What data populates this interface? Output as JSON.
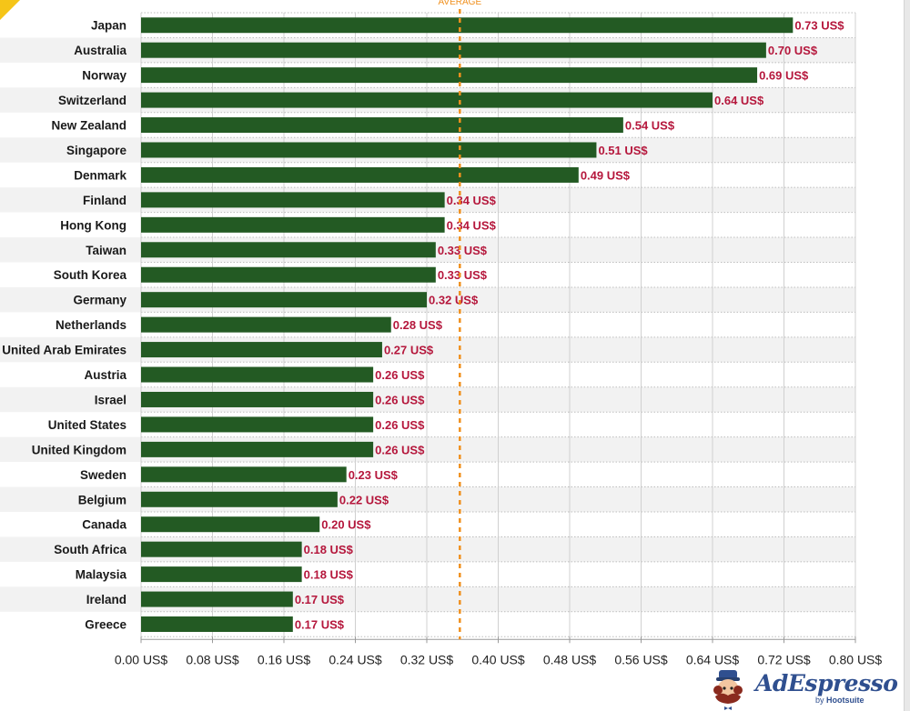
{
  "chart_data": {
    "type": "bar",
    "orientation": "horizontal",
    "title": "",
    "xlabel": "",
    "ylabel": "",
    "categories": [
      "Japan",
      "Australia",
      "Norway",
      "Switzerland",
      "New Zealand",
      "Singapore",
      "Denmark",
      "Finland",
      "Hong Kong",
      "Taiwan",
      "South Korea",
      "Germany",
      "Netherlands",
      "United Arab Emirates",
      "Austria",
      "Israel",
      "United States",
      "United Kingdom",
      "Sweden",
      "Belgium",
      "Canada",
      "South Africa",
      "Malaysia",
      "Ireland",
      "Greece"
    ],
    "values": [
      0.73,
      0.7,
      0.69,
      0.64,
      0.54,
      0.51,
      0.49,
      0.34,
      0.34,
      0.33,
      0.33,
      0.32,
      0.28,
      0.27,
      0.26,
      0.26,
      0.26,
      0.26,
      0.23,
      0.22,
      0.2,
      0.18,
      0.18,
      0.17,
      0.17
    ],
    "value_labels": [
      "0.73 US$",
      "0.70 US$",
      "0.69 US$",
      "0.64 US$",
      "0.54 US$",
      "0.51 US$",
      "0.49 US$",
      "0.34 US$",
      "0.34 US$",
      "0.33 US$",
      "0.33 US$",
      "0.32 US$",
      "0.28 US$",
      "0.27 US$",
      "0.26 US$",
      "0.26 US$",
      "0.26 US$",
      "0.26 US$",
      "0.23 US$",
      "0.22 US$",
      "0.20 US$",
      "0.18 US$",
      "0.18 US$",
      "0.17 US$",
      "0.17 US$"
    ],
    "xlim": [
      0,
      0.8
    ],
    "x_ticks": [
      0,
      0.08,
      0.16,
      0.24,
      0.32,
      0.4,
      0.48,
      0.56,
      0.64,
      0.72,
      0.8
    ],
    "x_tick_labels": [
      "0.00 US$",
      "0.08 US$",
      "0.16 US$",
      "0.24 US$",
      "0.32 US$",
      "0.40 US$",
      "0.48 US$",
      "0.56 US$",
      "0.64 US$",
      "0.72 US$",
      "0.80 US$"
    ],
    "grid": true,
    "reference_line": {
      "label": "AVERAGE",
      "value": 0.357
    },
    "colors": {
      "bar": "#235a23",
      "value_label": "#b5173c",
      "average_line": "#f0901e",
      "row_alt": "#f2f2f2",
      "category_text": "#1a1a1a",
      "tick_text": "#222222"
    }
  },
  "branding": {
    "logo_name": "AdEspresso",
    "logo_sub_prefix": "by",
    "logo_sub_brand": "Hootsuite"
  }
}
